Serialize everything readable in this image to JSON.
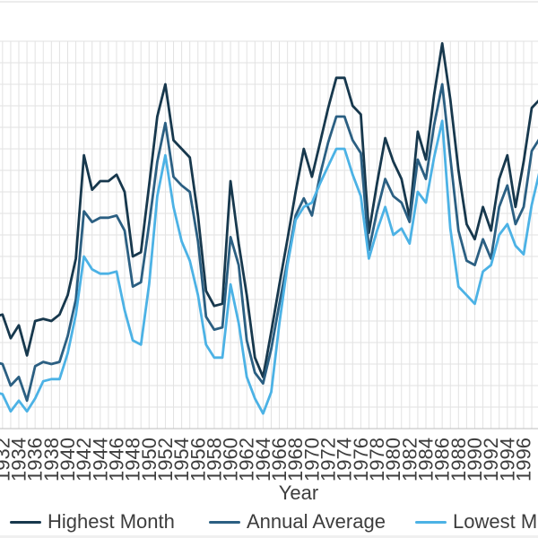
{
  "chart_data": {
    "type": "line",
    "title": "",
    "xlabel": "Year",
    "x": [
      1931,
      1932,
      1933,
      1934,
      1935,
      1936,
      1937,
      1938,
      1939,
      1940,
      1941,
      1942,
      1943,
      1944,
      1945,
      1946,
      1947,
      1948,
      1949,
      1950,
      1951,
      1952,
      1953,
      1954,
      1955,
      1956,
      1957,
      1958,
      1959,
      1960,
      1961,
      1962,
      1963,
      1964,
      1965,
      1966,
      1967,
      1968,
      1969,
      1970,
      1971,
      1972,
      1973,
      1974,
      1975,
      1976,
      1977,
      1978,
      1979,
      1980,
      1981,
      1982,
      1983,
      1984,
      1985,
      1986,
      1987,
      1988,
      1989,
      1990,
      1991,
      1992,
      1993,
      1994,
      1995,
      1996,
      1997,
      1998
    ],
    "x_tick_labels": [
      "1932",
      "1934",
      "1936",
      "1938",
      "1940",
      "1942",
      "1944",
      "1946",
      "1948",
      "1950",
      "1952",
      "1954",
      "1956",
      "1958",
      "1960",
      "1962",
      "1964",
      "1966",
      "1968",
      "1970",
      "1972",
      "1974",
      "1976",
      "1978",
      "1980",
      "1982",
      "1984",
      "1986",
      "1988",
      "1990",
      "1992",
      "1994",
      "1996"
    ],
    "series": [
      {
        "name": "Highest Month",
        "color": "#17384d",
        "values": [
          5.2,
          5.3,
          4.2,
          4.8,
          3.4,
          5.0,
          5.1,
          5.0,
          5.3,
          6.2,
          7.9,
          12.7,
          11.1,
          11.5,
          11.5,
          11.8,
          11.0,
          8.0,
          8.2,
          11.3,
          14.5,
          16.0,
          13.4,
          13.0,
          12.6,
          9.9,
          6.4,
          5.7,
          5.8,
          11.5,
          8.6,
          6.2,
          3.3,
          2.4,
          4.5,
          6.7,
          8.8,
          11.0,
          13.0,
          11.7,
          13.3,
          14.9,
          16.3,
          16.3,
          15.0,
          14.6,
          9.1,
          11.4,
          13.5,
          12.4,
          11.6,
          9.8,
          13.8,
          12.5,
          15.5,
          17.9,
          15.3,
          12.0,
          9.5,
          8.8,
          10.3,
          9.2,
          11.6,
          12.7,
          10.3,
          12.4,
          14.9,
          15.3
        ]
      },
      {
        "name": "Annual Average",
        "color": "#2b5f82",
        "values": [
          3.1,
          3.0,
          2.0,
          2.4,
          1.3,
          2.9,
          3.1,
          3.0,
          3.1,
          4.3,
          6.0,
          10.1,
          9.6,
          9.8,
          9.8,
          9.9,
          9.2,
          6.6,
          6.8,
          9.5,
          12.4,
          14.2,
          11.7,
          11.3,
          11.0,
          8.7,
          5.2,
          4.6,
          4.7,
          8.9,
          7.6,
          4.1,
          2.6,
          2.1,
          3.7,
          5.8,
          7.8,
          9.9,
          10.7,
          9.9,
          11.8,
          13.3,
          14.5,
          14.5,
          13.4,
          12.8,
          8.3,
          10.1,
          11.6,
          10.8,
          10.5,
          9.6,
          12.5,
          11.6,
          14.1,
          16.0,
          12.6,
          9.2,
          7.8,
          7.6,
          8.8,
          7.9,
          10.3,
          11.3,
          9.5,
          10.3,
          12.9,
          13.5
        ]
      },
      {
        "name": "Lowest Month",
        "color": "#4cb2e5",
        "values": [
          1.7,
          1.6,
          0.8,
          1.3,
          0.8,
          1.4,
          2.2,
          2.3,
          2.3,
          3.5,
          5.3,
          8.0,
          7.4,
          7.2,
          7.2,
          7.3,
          5.5,
          4.1,
          3.9,
          6.7,
          10.8,
          12.7,
          10.3,
          8.7,
          7.8,
          6.2,
          3.9,
          3.3,
          3.3,
          6.7,
          4.9,
          2.4,
          1.4,
          0.7,
          1.7,
          4.9,
          7.6,
          9.7,
          10.3,
          10.5,
          11.4,
          12.2,
          13.0,
          13.0,
          11.8,
          10.8,
          7.9,
          9.2,
          10.3,
          9.0,
          9.3,
          8.6,
          11.0,
          10.5,
          12.6,
          14.3,
          9.3,
          6.6,
          6.2,
          5.8,
          7.3,
          7.6,
          9.0,
          9.5,
          8.5,
          8.1,
          10.4,
          12.0
        ]
      }
    ],
    "ylim": [
      0,
      18
    ],
    "y_tick_labels_visible": false,
    "grid": true,
    "legend_position": "bottom"
  },
  "colors": {
    "gridline": "#e2e2e2",
    "axis_line": "#bdbdbd",
    "top_rule": "#d8d8d8",
    "text": "#3d3d3d"
  }
}
